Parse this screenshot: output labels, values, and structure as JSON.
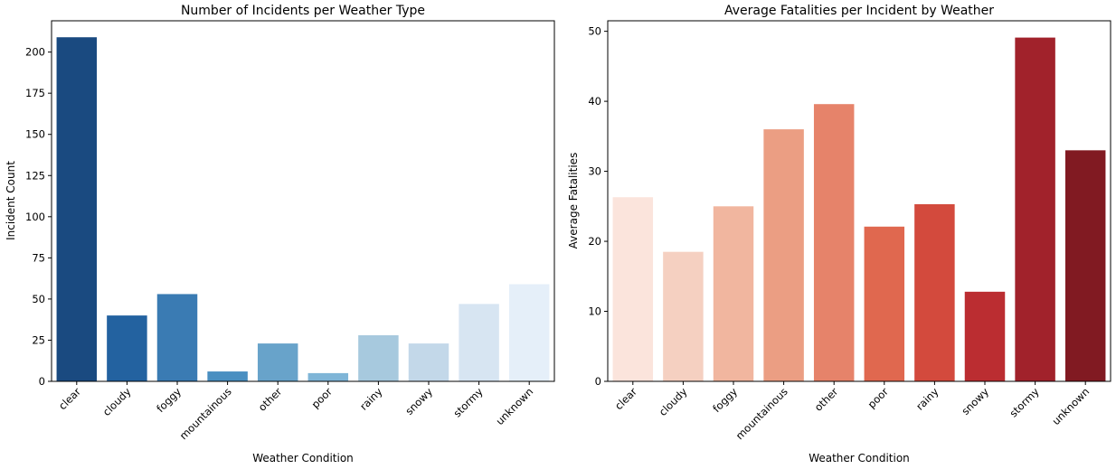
{
  "chart_data": [
    {
      "type": "bar",
      "title": "Number of Incidents per Weather Type",
      "xlabel": "Weather Condition",
      "ylabel": "Incident Count",
      "categories": [
        "clear",
        "cloudy",
        "foggy",
        "mountainous",
        "other",
        "poor",
        "rainy",
        "snowy",
        "stormy",
        "unknown"
      ],
      "values": [
        209,
        40,
        53,
        6,
        23,
        5,
        28,
        23,
        47,
        59
      ],
      "ylim": [
        0,
        219
      ],
      "yticks": [
        0,
        25,
        50,
        75,
        100,
        125,
        150,
        175,
        200
      ],
      "colors": [
        "#1a4a80",
        "#2362a0",
        "#3a7bb3",
        "#4a8fc1",
        "#68a3ca",
        "#7fb5d7",
        "#a7c9de",
        "#c3d8e9",
        "#d7e5f2",
        "#e5eff9"
      ],
      "grid": false,
      "legend": "none"
    },
    {
      "type": "bar",
      "title": "Average Fatalities per Incident by Weather",
      "xlabel": "Weather Condition",
      "ylabel": "Average Fatalities",
      "categories": [
        "clear",
        "cloudy",
        "foggy",
        "mountainous",
        "other",
        "poor",
        "rainy",
        "snowy",
        "stormy",
        "unknown"
      ],
      "values": [
        26.3,
        18.5,
        25.0,
        36.0,
        39.6,
        22.1,
        25.3,
        12.8,
        49.1,
        33.0
      ],
      "ylim": [
        0,
        51.5
      ],
      "yticks": [
        0,
        10,
        20,
        30,
        40,
        50
      ],
      "colors": [
        "#fbe4dc",
        "#f5d0c1",
        "#f1b69f",
        "#eb9e83",
        "#e6836a",
        "#e0684f",
        "#d34a3d",
        "#bb2d31",
        "#a1222b",
        "#811a22"
      ],
      "grid": false,
      "legend": "none"
    }
  ]
}
